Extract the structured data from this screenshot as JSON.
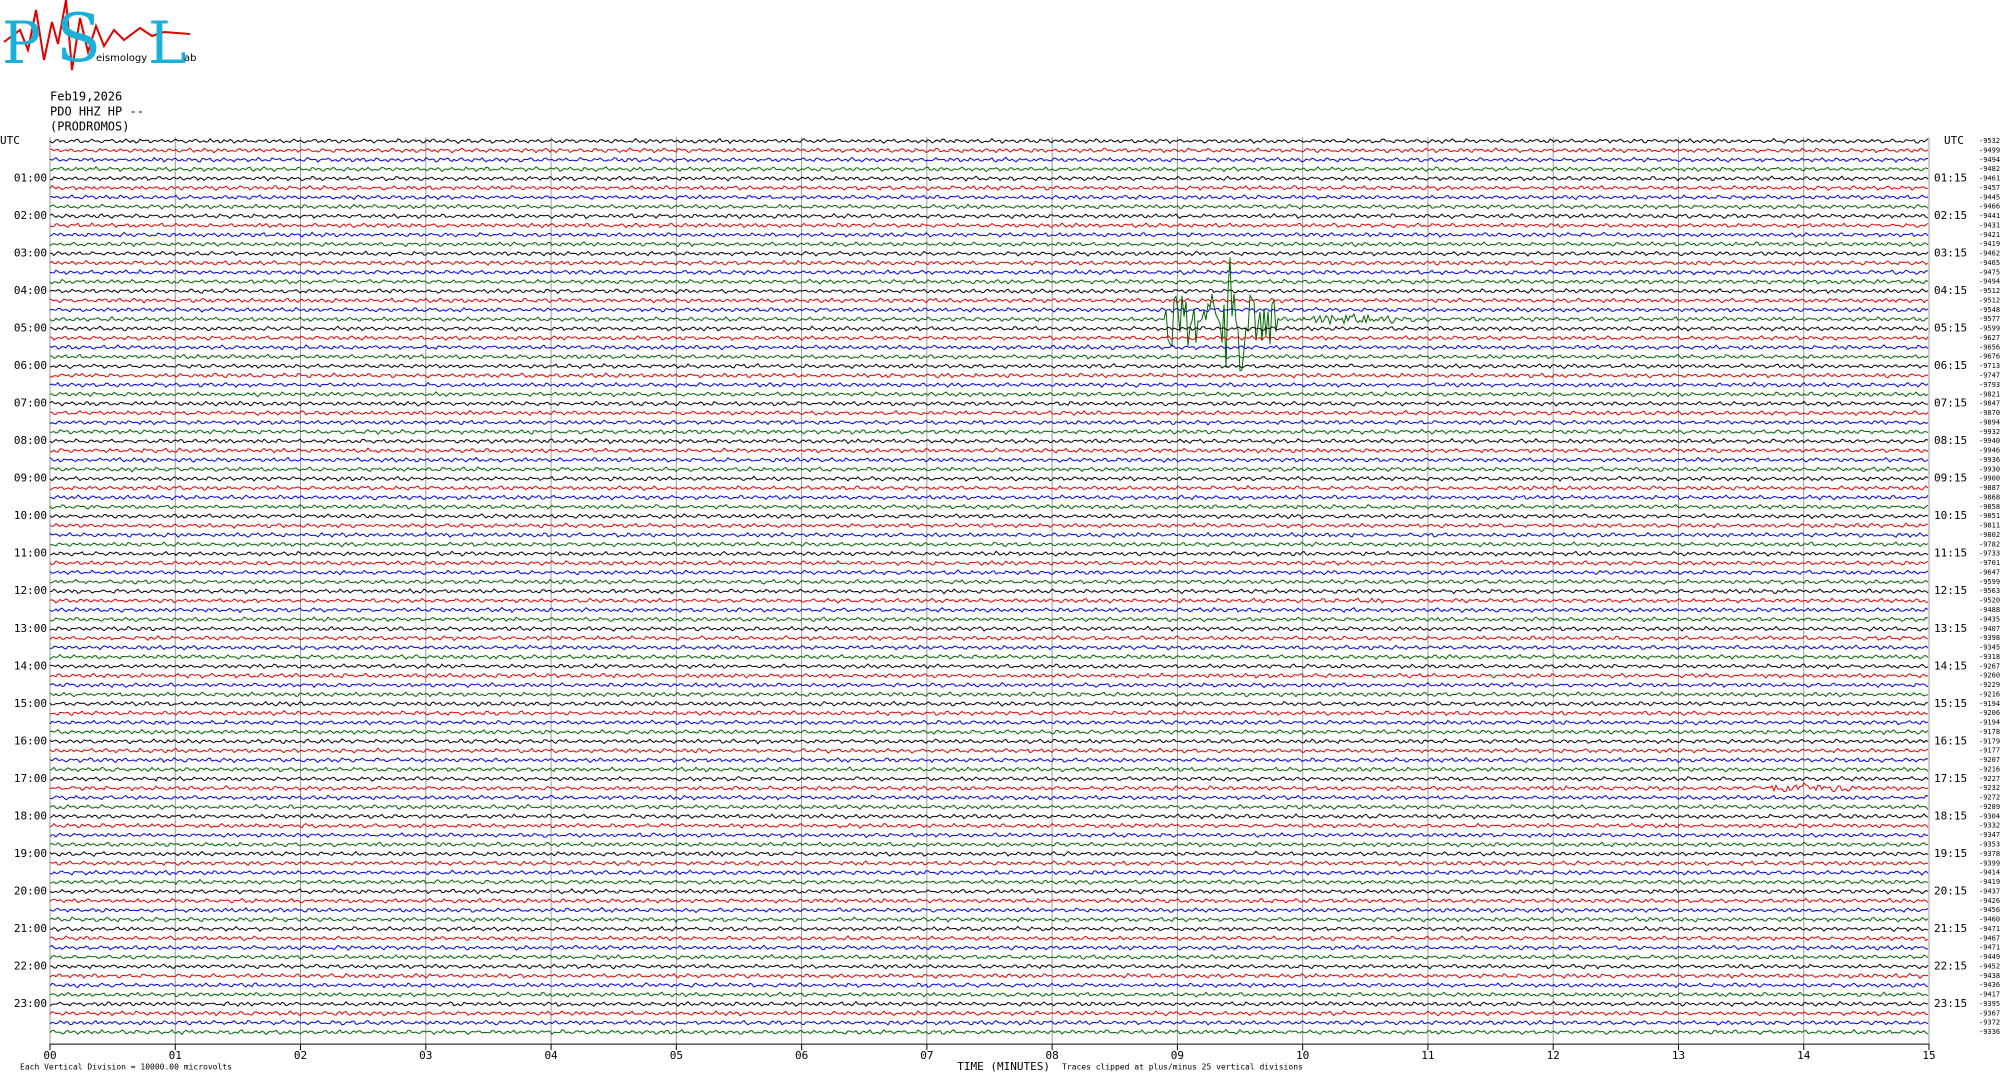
{
  "logo": {
    "letters": [
      "P",
      "S",
      "L"
    ],
    "words": [
      "eismology",
      "ab"
    ]
  },
  "header": {
    "date": "Feb19,2026",
    "station": "PDO HHZ HP --",
    "site": "(PRODROMOS)"
  },
  "helicorder": {
    "left_title": "UTC",
    "right_title": "UTC",
    "left_labels": [
      "01:00",
      "02:00",
      "03:00",
      "04:00",
      "05:00",
      "06:00",
      "07:00",
      "08:00",
      "09:00",
      "10:00",
      "11:00",
      "12:00",
      "13:00",
      "14:00",
      "15:00",
      "16:00",
      "17:00",
      "18:00",
      "19:00",
      "20:00",
      "21:00",
      "22:00",
      "23:00"
    ],
    "right_labels": [
      "01:15",
      "02:15",
      "03:15",
      "04:15",
      "05:15",
      "06:15",
      "07:15",
      "08:15",
      "09:15",
      "10:15",
      "11:15",
      "12:15",
      "13:15",
      "14:15",
      "15:15",
      "16:15",
      "17:15",
      "18:15",
      "19:15",
      "20:15",
      "21:15",
      "22:15",
      "23:15"
    ],
    "offsets": [
      -9532,
      -9499,
      -9494,
      -9482,
      -9461,
      -9457,
      -9445,
      -9466,
      -9441,
      -9431,
      -9421,
      -9419,
      -9462,
      -9465,
      -9475,
      -9494,
      -9512,
      -9512,
      -9548,
      -9577,
      -9599,
      -9627,
      -9656,
      -9676,
      -9713,
      -9747,
      -9793,
      -9821,
      -9847,
      -9870,
      -9894,
      -9932,
      -9940,
      -9946,
      -9936,
      -9930,
      -9900,
      -9887,
      -9868,
      -9858,
      -9851,
      -9811,
      -9802,
      -9782,
      -9733,
      -9701,
      -9647,
      -9599,
      -9563,
      -9520,
      -9488,
      -9435,
      -9407,
      -9398,
      -9345,
      -9318,
      -9267,
      -9260,
      -9229,
      -9216,
      -9194,
      -9206,
      -9194,
      -9178,
      -9179,
      -9177,
      -9207,
      -9216,
      -9227,
      -9232,
      -9272,
      -9289,
      -9304,
      -9332,
      -9347,
      -9353,
      -9378,
      -9399,
      -9414,
      -9419,
      -9437,
      -9426,
      -9456,
      -9460,
      -9471,
      -9467,
      -9471,
      -9449,
      -9452,
      -9438,
      -9436,
      -9417,
      -9395,
      -9367,
      -9372,
      -9336
    ],
    "trace_colors": [
      "#000000",
      "#e00000",
      "#0000e0",
      "#006400"
    ],
    "x_ticks": [
      "00",
      "01",
      "02",
      "03",
      "04",
      "05",
      "06",
      "07",
      "08",
      "09",
      "10",
      "11",
      "12",
      "13",
      "14",
      "15"
    ],
    "x_label": "TIME (MINUTES)",
    "clip_note": "Traces clipped at plus/minus 25 vertical divisions",
    "scale_note": "Each Vertical Division = 10000.00 microvolts"
  }
}
